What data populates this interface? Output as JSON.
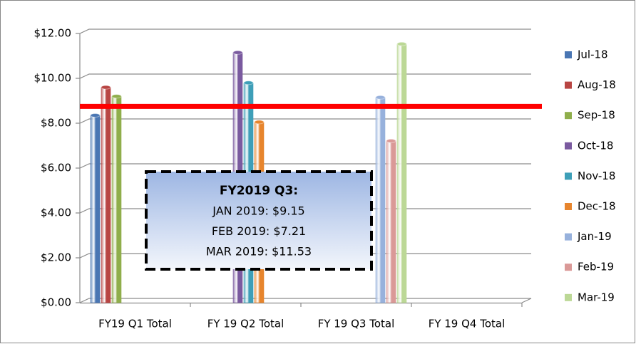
{
  "chart_data": {
    "type": "bar",
    "categories": [
      "FY19 Q1 Total",
      "FY 19 Q2 Total",
      "FY 19 Q3 Total",
      "FY 19 Q4 Total"
    ],
    "series": [
      {
        "name": "Jul-18",
        "color": "#4a76b3",
        "values": [
          8.35,
          null,
          null,
          null
        ]
      },
      {
        "name": "Aug-18",
        "color": "#b84543",
        "values": [
          9.6,
          null,
          null,
          null
        ]
      },
      {
        "name": "Sep-18",
        "color": "#8fae4b",
        "values": [
          9.2,
          null,
          null,
          null
        ]
      },
      {
        "name": "Oct-18",
        "color": "#7a5a9f",
        "values": [
          null,
          11.15,
          null,
          null
        ]
      },
      {
        "name": "Nov-18",
        "color": "#3e9fb8",
        "values": [
          null,
          9.8,
          null,
          null
        ]
      },
      {
        "name": "Dec-18",
        "color": "#e7852d",
        "values": [
          null,
          8.05,
          null,
          null
        ]
      },
      {
        "name": "Jan-19",
        "color": "#97b1dc",
        "values": [
          null,
          null,
          9.15,
          null
        ]
      },
      {
        "name": "Feb-19",
        "color": "#da9997",
        "values": [
          null,
          null,
          7.21,
          null
        ]
      },
      {
        "name": "Mar-19",
        "color": "#bcd896",
        "values": [
          null,
          null,
          11.53,
          null
        ]
      }
    ],
    "ylim": [
      0,
      12
    ],
    "yticks": [
      {
        "value": 0,
        "label": "$0.00"
      },
      {
        "value": 2,
        "label": "$2.00"
      },
      {
        "value": 4,
        "label": "$4.00"
      },
      {
        "value": 6,
        "label": "$6.00"
      },
      {
        "value": 8,
        "label": "$8.00"
      },
      {
        "value": 10,
        "label": "$10.00"
      },
      {
        "value": 12,
        "label": "$12.00"
      }
    ],
    "grid": true,
    "legend": "right",
    "reference_line": {
      "value": 8.75,
      "color": "#ff0000"
    },
    "annotation": {
      "title": "FY2019 Q3:",
      "lines": [
        "JAN 2019: $9.15",
        "FEB 2019: $7.21",
        "MAR 2019: $11.53"
      ]
    }
  }
}
